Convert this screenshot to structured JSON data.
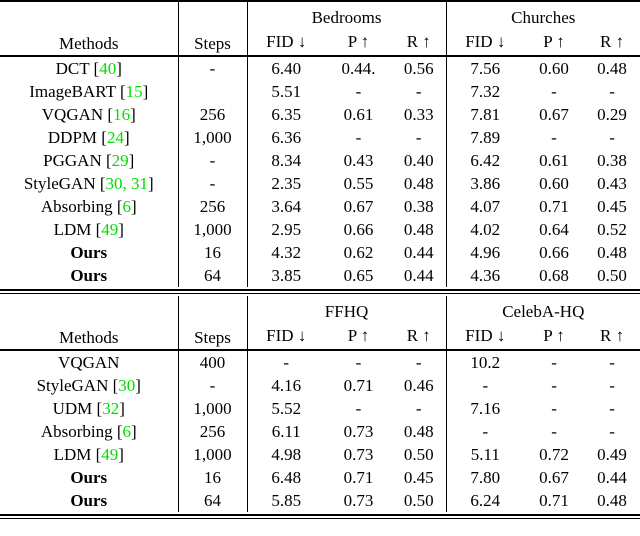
{
  "colors": {
    "citation_green": "#00DD00",
    "rule_black": "#000000"
  },
  "tables": [
    {
      "header": {
        "methods_label": "Methods",
        "steps_label": "Steps",
        "group1": "Bedrooms",
        "group2": "Churches",
        "metric_fid": "FID ↓",
        "metric_p": "P ↑",
        "metric_r": "R ↑"
      },
      "rows": [
        {
          "method": "DCT",
          "cite": "40",
          "bold": false,
          "steps": "-",
          "values": [
            "6.40",
            "0.44.",
            "0.56",
            "7.56",
            "0.60",
            "0.48"
          ]
        },
        {
          "method": "ImageBART",
          "cite": "15",
          "bold": false,
          "steps": "",
          "values": [
            "5.51",
            "-",
            "-",
            "7.32",
            "-",
            "-"
          ]
        },
        {
          "method": "VQGAN",
          "cite": "16",
          "bold": false,
          "steps": "256",
          "values": [
            "6.35",
            "0.61",
            "0.33",
            "7.81",
            "0.67",
            "0.29"
          ]
        },
        {
          "method": "DDPM",
          "cite": "24",
          "bold": false,
          "steps": "1,000",
          "values": [
            "6.36",
            "-",
            "-",
            "7.89",
            "-",
            "-"
          ]
        },
        {
          "method": "PGGAN",
          "cite": "29",
          "bold": false,
          "steps": "-",
          "values": [
            "8.34",
            "0.43",
            "0.40",
            "6.42",
            "0.61",
            "0.38"
          ]
        },
        {
          "method": "StyleGAN",
          "cite": "30, 31",
          "bold": false,
          "steps": "-",
          "values": [
            "2.35",
            "0.55",
            "0.48",
            "3.86",
            "0.60",
            "0.43"
          ]
        },
        {
          "method": "Absorbing",
          "cite": "6",
          "bold": false,
          "steps": "256",
          "values": [
            "3.64",
            "0.67",
            "0.38",
            "4.07",
            "0.71",
            "0.45"
          ]
        },
        {
          "method": "LDM",
          "cite": "49",
          "bold": false,
          "steps": "1,000",
          "values": [
            "2.95",
            "0.66",
            "0.48",
            "4.02",
            "0.64",
            "0.52"
          ]
        },
        {
          "method": "Ours",
          "cite": "",
          "bold": true,
          "steps": "16",
          "values": [
            "4.32",
            "0.62",
            "0.44",
            "4.96",
            "0.66",
            "0.48"
          ]
        },
        {
          "method": "Ours",
          "cite": "",
          "bold": true,
          "steps": "64",
          "values": [
            "3.85",
            "0.65",
            "0.44",
            "4.36",
            "0.68",
            "0.50"
          ]
        }
      ]
    },
    {
      "header": {
        "methods_label": "Methods",
        "steps_label": "Steps",
        "group1": "FFHQ",
        "group2": "CelebA-HQ",
        "metric_fid": "FID ↓",
        "metric_p": "P ↑",
        "metric_r": "R ↑"
      },
      "rows": [
        {
          "method": "VQGAN",
          "cite": "",
          "bold": false,
          "steps": "400",
          "values": [
            "-",
            "-",
            "-",
            "10.2",
            "-",
            "-"
          ]
        },
        {
          "method": "StyleGAN",
          "cite": "30",
          "bold": false,
          "steps": "-",
          "values": [
            "4.16",
            "0.71",
            "0.46",
            "-",
            "-",
            "-"
          ]
        },
        {
          "method": "UDM",
          "cite": "32",
          "bold": false,
          "steps": "1,000",
          "values": [
            "5.52",
            "-",
            "-",
            "7.16",
            "-",
            "-"
          ]
        },
        {
          "method": "Absorbing",
          "cite": "6",
          "bold": false,
          "steps": "256",
          "values": [
            "6.11",
            "0.73",
            "0.48",
            "-",
            "-",
            "-"
          ]
        },
        {
          "method": "LDM",
          "cite": "49",
          "bold": false,
          "steps": "1,000",
          "values": [
            "4.98",
            "0.73",
            "0.50",
            "5.11",
            "0.72",
            "0.49"
          ]
        },
        {
          "method": "Ours",
          "cite": "",
          "bold": true,
          "steps": "16",
          "values": [
            "6.48",
            "0.71",
            "0.45",
            "7.80",
            "0.67",
            "0.44"
          ]
        },
        {
          "method": "Ours",
          "cite": "",
          "bold": true,
          "steps": "64",
          "values": [
            "5.85",
            "0.73",
            "0.50",
            "6.24",
            "0.71",
            "0.48"
          ]
        }
      ]
    }
  ]
}
